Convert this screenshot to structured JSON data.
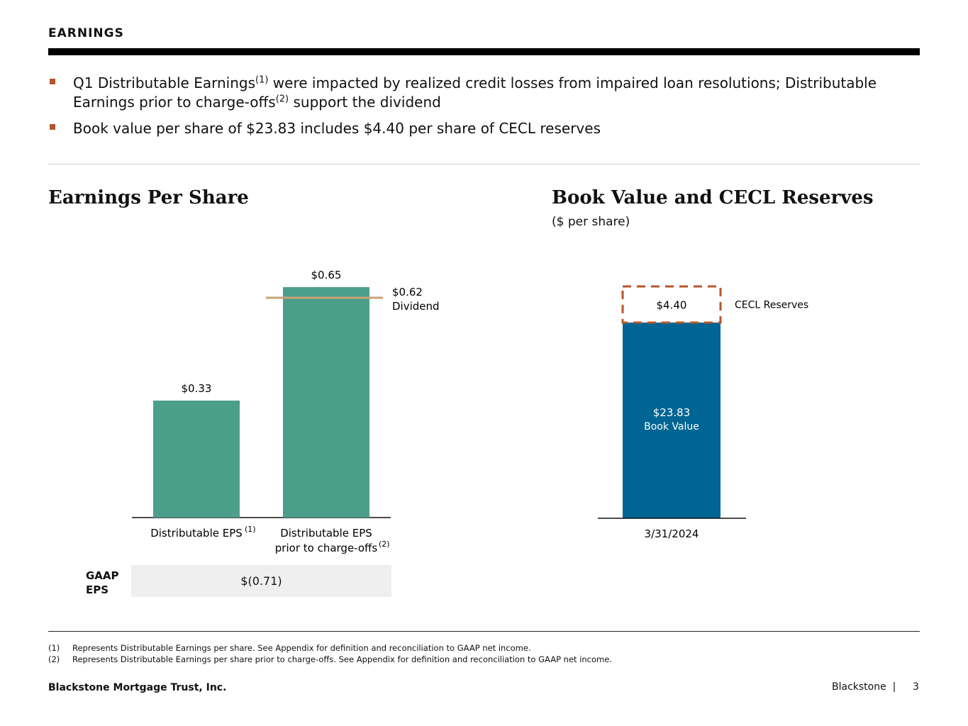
{
  "header": {
    "section_title": "EARNINGS"
  },
  "bullets": [
    {
      "parts": [
        "Q1 Distributable Earnings",
        "(1)",
        " were impacted by realized credit losses from impaired loan resolutions; Distributable Earnings prior to charge-offs",
        "(2)",
        " support the dividend"
      ]
    },
    {
      "text": "Book value per share of $23.83 includes $4.40 per share of CECL reserves"
    }
  ],
  "colors": {
    "accent": "#b5562a",
    "eps_bar": "#4b9e8a",
    "dividend_line": "#c8a27a",
    "book_value": "#006593",
    "cecl_dash": "#b5562a"
  },
  "chart_data": [
    {
      "type": "bar",
      "title": "Earnings Per Share",
      "categories": [
        "Distributable EPS",
        "Distributable EPS prior to charge-offs"
      ],
      "category_lines": [
        [
          "Distributable EPS"
        ],
        [
          "Distributable EPS",
          "prior to charge-offs"
        ]
      ],
      "category_sups": [
        "(1)",
        "(2)"
      ],
      "values": [
        0.33,
        0.65
      ],
      "value_labels": [
        "$0.33",
        "$0.65"
      ],
      "ylim": [
        0,
        0.65
      ],
      "reference_line": {
        "value": 0.62,
        "label_value": "$0.62",
        "label_text": "Dividend"
      },
      "gaap": {
        "label_line1": "GAAP",
        "label_line2": "EPS",
        "value": "$(0.71)"
      }
    },
    {
      "type": "bar",
      "title": "Book Value and CECL Reserves",
      "subtitle": "($ per share)",
      "categories": [
        "3/31/2024"
      ],
      "series": [
        {
          "name": "Book Value",
          "values": [
            23.83
          ],
          "label": "$23.83"
        },
        {
          "name": "CECL Reserves",
          "values": [
            4.4
          ],
          "label": "$4.40"
        }
      ],
      "ylim": [
        0,
        28.23
      ]
    }
  ],
  "footnotes": [
    {
      "num": "(1)",
      "text": "Represents Distributable Earnings per share. See Appendix for definition and reconciliation to GAAP net income."
    },
    {
      "num": "(2)",
      "text": "Represents Distributable Earnings per share prior to charge-offs. See Appendix for definition and reconciliation to GAAP net income."
    }
  ],
  "footer": {
    "company": "Blackstone Mortgage Trust, Inc.",
    "brand": "Blackstone  |",
    "page": "3"
  }
}
